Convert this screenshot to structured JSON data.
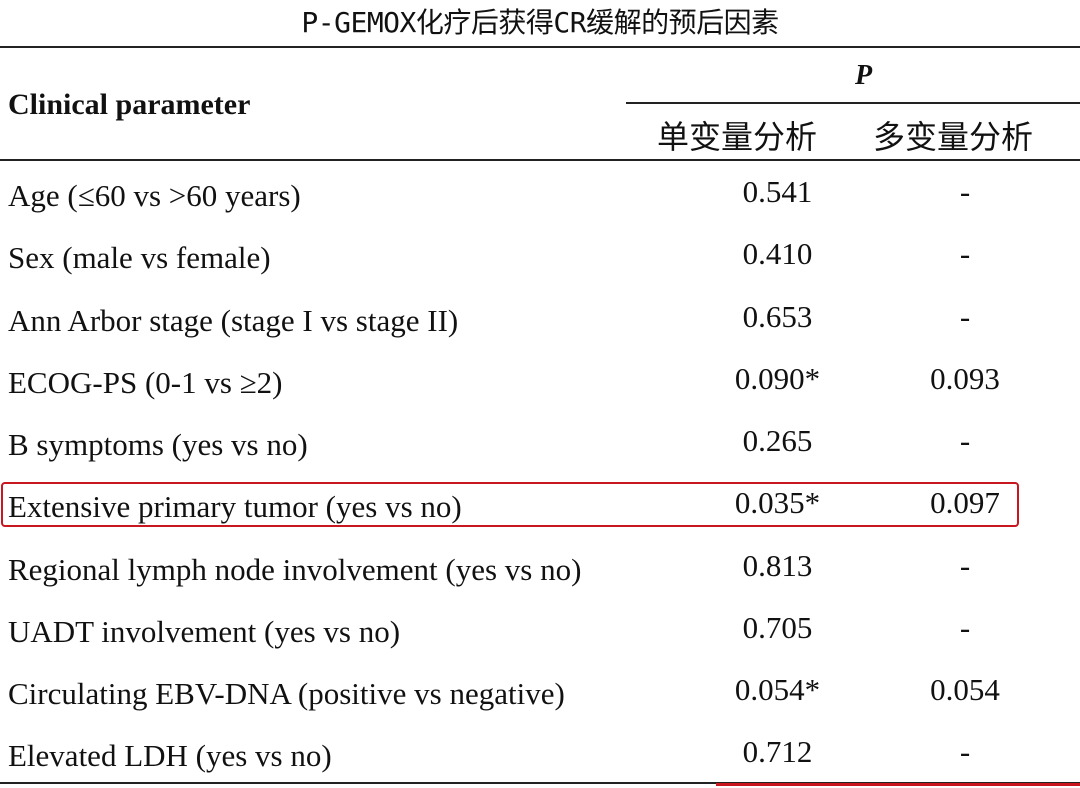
{
  "title": "P-GEMOX化疗后获得CR缓解的预后因素",
  "header": {
    "param_label": "Clinical parameter",
    "p_label": "P",
    "univariate_label": "单变量分析",
    "multivariate_label": "多变量分析"
  },
  "rows": [
    {
      "name": "Age (≤60 vs >60 years)",
      "uni": "0.541",
      "multi": "-"
    },
    {
      "name": "Sex (male vs female)",
      "uni": "0.410",
      "multi": "-"
    },
    {
      "name": "Ann Arbor stage (stage I vs stage II)",
      "uni": "0.653",
      "multi": "-"
    },
    {
      "name": "ECOG-PS (0-1 vs ≥2)",
      "uni": "0.090*",
      "multi": "0.093"
    },
    {
      "name": "B symptoms (yes vs no)",
      "uni": "0.265",
      "multi": "-"
    },
    {
      "name": "Extensive primary tumor (yes vs no)",
      "uni": "0.035*",
      "multi": "0.097"
    },
    {
      "name": "Regional lymph node involvement (yes vs no)",
      "uni": "0.813",
      "multi": "-"
    },
    {
      "name": "UADT involvement (yes vs no)",
      "uni": "0.705",
      "multi": "-"
    },
    {
      "name": "Circulating EBV-DNA (positive vs negative)",
      "uni": "0.054*",
      "multi": "0.054"
    },
    {
      "name": "Elevated LDH (yes vs no)",
      "uni": "0.712",
      "multi": "-"
    }
  ],
  "colors": {
    "highlight": "#c8171e",
    "rule": "#222222"
  }
}
